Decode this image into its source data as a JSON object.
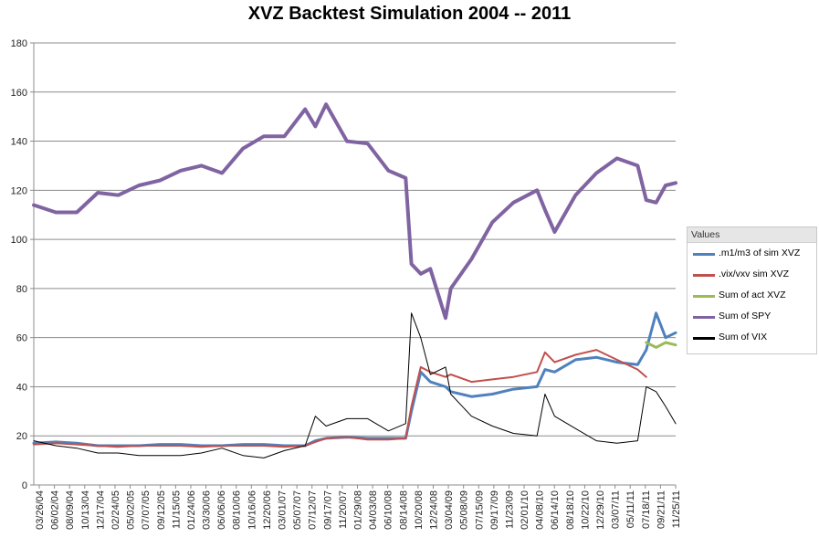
{
  "chart_data": {
    "type": "line",
    "title": "XVZ Backtest Simulation 2004 -- 2011",
    "ylim": [
      0,
      180
    ],
    "yticks": [
      0,
      20,
      40,
      60,
      80,
      100,
      120,
      140,
      160,
      180
    ],
    "grid": "horizontal",
    "legend_placement": "right",
    "legend_title": "Values",
    "x_tick_labels": [
      "03/26/04",
      "06/02/04",
      "08/09/04",
      "10/13/04",
      "12/17/04",
      "02/24/05",
      "05/02/05",
      "07/07/05",
      "09/12/05",
      "11/15/05",
      "01/24/06",
      "03/30/06",
      "06/06/06",
      "08/10/06",
      "10/16/06",
      "12/20/06",
      "03/01/07",
      "05/07/07",
      "07/12/07",
      "09/17/07",
      "11/20/07",
      "01/29/08",
      "04/03/08",
      "06/10/08",
      "08/14/08",
      "10/20/08",
      "12/24/08",
      "03/04/09",
      "05/08/09",
      "07/15/09",
      "09/17/09",
      "11/23/09",
      "02/01/10",
      "04/08/10",
      "06/14/10",
      "08/18/10",
      "10/22/10",
      "12/29/10",
      "03/07/11",
      "05/11/11",
      "07/18/11",
      "09/21/11",
      "11/25/11"
    ],
    "x": [
      "2004-03-26",
      "2004-07-01",
      "2004-10-01",
      "2005-01-01",
      "2005-04-01",
      "2005-07-01",
      "2005-10-01",
      "2006-01-01",
      "2006-04-01",
      "2006-07-01",
      "2006-10-01",
      "2007-01-01",
      "2007-04-01",
      "2007-07-01",
      "2007-08-15",
      "2007-10-01",
      "2008-01-01",
      "2008-04-01",
      "2008-07-01",
      "2008-09-15",
      "2008-10-10",
      "2008-11-20",
      "2009-01-01",
      "2009-03-09",
      "2009-04-01",
      "2009-07-01",
      "2009-10-01",
      "2010-01-01",
      "2010-04-15",
      "2010-05-20",
      "2010-07-01",
      "2010-10-01",
      "2011-01-01",
      "2011-04-01",
      "2011-07-01",
      "2011-08-08",
      "2011-09-20",
      "2011-11-01",
      "2011-12-15"
    ],
    "series": [
      {
        "name": ".m1/m3 of sim XVZ",
        "color": "#4f81bd",
        "values": [
          17,
          17.5,
          17,
          16,
          16,
          16,
          16.5,
          16.5,
          16,
          16,
          16.5,
          16.5,
          16,
          16,
          18,
          19,
          19.5,
          19,
          19,
          19,
          30,
          46,
          42,
          40,
          38,
          36,
          37,
          39,
          40,
          47,
          46,
          51,
          52,
          50,
          49,
          55,
          70,
          60,
          62
        ]
      },
      {
        "name": ".vix/vxv sim XVZ",
        "color": "#c0504d",
        "values": [
          16.5,
          17,
          16.5,
          16,
          15.5,
          16,
          16,
          16,
          15.5,
          16,
          16,
          16,
          15.5,
          16,
          17.5,
          19,
          19.5,
          18.5,
          18.5,
          19,
          32,
          48,
          46,
          44,
          45,
          42,
          43,
          44,
          46,
          54,
          50,
          53,
          55,
          51,
          47,
          44,
          null,
          null,
          null
        ]
      },
      {
        "name": "Sum of act XVZ",
        "color": "#9bbb59",
        "values": [
          null,
          null,
          null,
          null,
          null,
          null,
          null,
          null,
          null,
          null,
          null,
          null,
          null,
          null,
          null,
          null,
          null,
          null,
          null,
          null,
          null,
          null,
          null,
          null,
          null,
          null,
          null,
          null,
          null,
          null,
          null,
          null,
          null,
          null,
          null,
          58,
          56,
          58,
          57
        ]
      },
      {
        "name": "Sum of SPY",
        "color": "#8064a2",
        "values": [
          114,
          111,
          111,
          119,
          118,
          122,
          124,
          128,
          130,
          127,
          137,
          142,
          142,
          153,
          146,
          155,
          140,
          139,
          128,
          125,
          90,
          86,
          88,
          68,
          80,
          92,
          107,
          115,
          120,
          112,
          103,
          118,
          127,
          133,
          130,
          116,
          115,
          122,
          123
        ]
      },
      {
        "name": "Sum of VIX",
        "color": "#000000",
        "values": [
          18,
          16,
          15,
          13,
          13,
          12,
          12,
          12,
          13,
          15,
          12,
          11,
          14,
          16,
          28,
          24,
          27,
          27,
          22,
          25,
          70,
          60,
          45,
          48,
          37,
          28,
          24,
          21,
          20,
          37,
          28,
          23,
          18,
          17,
          18,
          40,
          38,
          32,
          25
        ]
      }
    ]
  }
}
